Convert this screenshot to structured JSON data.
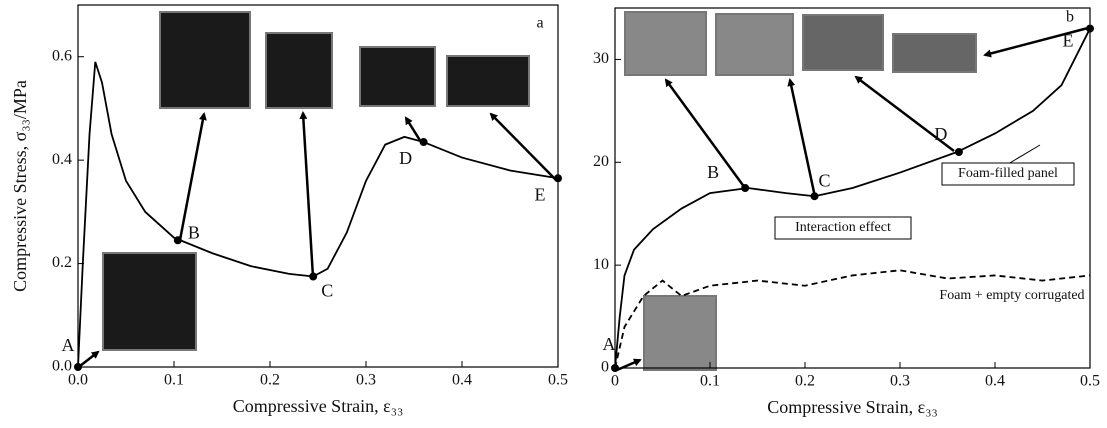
{
  "chart_data": [
    {
      "type": "line",
      "panel_label": "a",
      "x_label": "Compressive Strain, ε₃₃",
      "y_label": "Compressive Stress, σ₃₃/MPa",
      "xlim": [
        0,
        0.5
      ],
      "ylim": [
        0,
        0.7
      ],
      "xticks": [
        {
          "value": 0,
          "label": "0.0"
        },
        0.1,
        0.2,
        0.3,
        0.4,
        0.5
      ],
      "yticks": [
        {
          "value": 0,
          "label": "0.0"
        },
        0.2,
        0.4,
        0.6
      ],
      "series": [
        {
          "color": "#000000",
          "dashed": false,
          "x": [
            0,
            0.005,
            0.012,
            0.018,
            0.025,
            0.035,
            0.05,
            0.07,
            0.1,
            0.14,
            0.18,
            0.22,
            0.245,
            0.26,
            0.28,
            0.3,
            0.32,
            0.34,
            0.36,
            0.4,
            0.45,
            0.5
          ],
          "values": [
            0,
            0.2,
            0.45,
            0.59,
            0.55,
            0.45,
            0.36,
            0.3,
            0.25,
            0.22,
            0.195,
            0.18,
            0.175,
            0.19,
            0.26,
            0.36,
            0.43,
            0.445,
            0.435,
            0.405,
            0.38,
            0.365
          ]
        }
      ],
      "points": [
        {
          "label": "A",
          "x": 0,
          "y": 0
        },
        {
          "label": "B",
          "x": 0.104,
          "y": 0.245
        },
        {
          "label": "C",
          "x": 0.245,
          "y": 0.175
        },
        {
          "label": "D",
          "x": 0.36,
          "y": 0.435
        },
        {
          "label": "E",
          "x": 0.5,
          "y": 0.365
        }
      ]
    },
    {
      "type": "line",
      "panel_label": "b",
      "x_label": "Compressive Strain, ε₃₃",
      "xlim": [
        0,
        0.5
      ],
      "ylim": [
        0,
        35
      ],
      "xticks": [
        0,
        0.1,
        0.2,
        0.3,
        0.4,
        0.5
      ],
      "yticks": [
        0,
        10,
        20,
        30
      ],
      "series": [
        {
          "name": "Foam-filled panel",
          "color": "#000000",
          "dashed": false,
          "x": [
            0,
            0.005,
            0.01,
            0.02,
            0.04,
            0.07,
            0.1,
            0.14,
            0.18,
            0.21,
            0.25,
            0.3,
            0.36,
            0.4,
            0.44,
            0.47,
            0.5
          ],
          "values": [
            0,
            5,
            9,
            11.5,
            13.5,
            15.5,
            17,
            17.5,
            17,
            16.7,
            17.5,
            19,
            21,
            22.8,
            25,
            27.5,
            33
          ]
        },
        {
          "name": "Foam + empty corrugated",
          "color": "#000000",
          "dashed": true,
          "x": [
            0,
            0.01,
            0.03,
            0.05,
            0.07,
            0.1,
            0.15,
            0.2,
            0.25,
            0.3,
            0.35,
            0.4,
            0.45,
            0.5
          ],
          "values": [
            0,
            4,
            7,
            8.5,
            7,
            8,
            8.5,
            8,
            9,
            9.5,
            8.7,
            9,
            8.5,
            9
          ]
        }
      ],
      "annotations": [
        "Interaction effect"
      ],
      "points": [
        {
          "label": "A",
          "x": 0,
          "y": 0
        },
        {
          "label": "B",
          "x": 0.137,
          "y": 17.5
        },
        {
          "label": "C",
          "x": 0.21,
          "y": 16.7
        },
        {
          "label": "D",
          "x": 0.362,
          "y": 21
        },
        {
          "label": "E",
          "x": 0.5,
          "y": 33
        }
      ]
    }
  ]
}
